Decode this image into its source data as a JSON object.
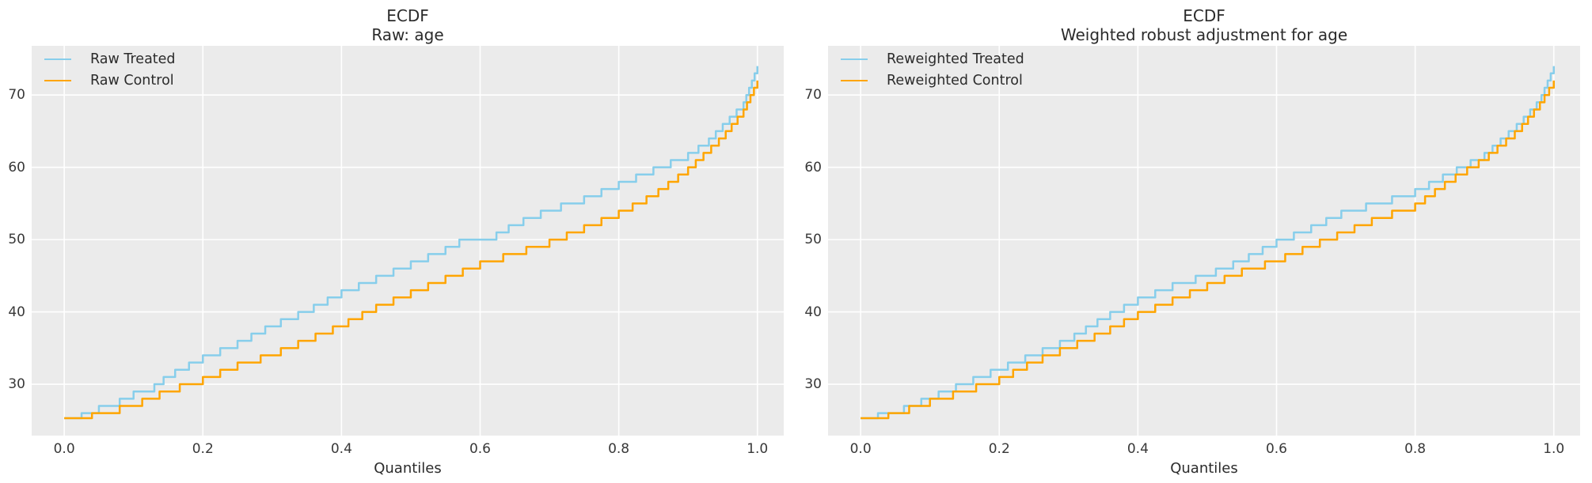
{
  "figure": {
    "background": "#ffffff",
    "axes_background": "#ebebeb",
    "grid_color": "#ffffff",
    "text_color": "#2b2b2b"
  },
  "chart_data": [
    {
      "type": "line",
      "subtype": "ecdf-quantile-step",
      "title": "ECDF",
      "subtitle": "Raw: age",
      "xlabel": "Quantiles",
      "ylabel": "",
      "grid": true,
      "legend_position": "upper-left",
      "xlim": [
        -0.047,
        1.038
      ],
      "ylim": [
        22.9,
        76.8
      ],
      "xtick_labels": [
        "0.0",
        "0.2",
        "0.4",
        "0.6",
        "0.8",
        "1.0"
      ],
      "xtick_values": [
        0.0,
        0.2,
        0.4,
        0.6,
        0.8,
        1.0
      ],
      "ytick_values": [
        30,
        40,
        50,
        60,
        70
      ],
      "series": [
        {
          "name": "Raw Treated",
          "color": "#87CEEB",
          "points": [
            [
              0,
              25.3
            ],
            [
              0.025,
              26
            ],
            [
              0.05,
              27
            ],
            [
              0.08,
              28
            ],
            [
              0.1,
              29
            ],
            [
              0.13,
              30
            ],
            [
              0.15,
              31.5
            ],
            [
              0.2,
              34
            ],
            [
              0.25,
              36
            ],
            [
              0.3,
              38.5
            ],
            [
              0.35,
              40.5
            ],
            [
              0.4,
              43
            ],
            [
              0.45,
              45
            ],
            [
              0.5,
              47
            ],
            [
              0.55,
              49
            ],
            [
              0.57,
              50
            ],
            [
              0.62,
              50.8
            ],
            [
              0.65,
              52.5
            ],
            [
              0.7,
              54.5
            ],
            [
              0.75,
              56
            ],
            [
              0.8,
              58
            ],
            [
              0.85,
              60
            ],
            [
              0.9,
              62
            ],
            [
              0.93,
              64
            ],
            [
              0.95,
              66
            ],
            [
              0.98,
              69
            ],
            [
              1.0,
              74
            ]
          ]
        },
        {
          "name": "Raw Control",
          "color": "#FFA500",
          "points": [
            [
              0,
              25.3
            ],
            [
              0.04,
              26
            ],
            [
              0.08,
              27
            ],
            [
              0.1,
              27.5
            ],
            [
              0.15,
              29.5
            ],
            [
              0.2,
              31
            ],
            [
              0.25,
              33
            ],
            [
              0.3,
              34.5
            ],
            [
              0.35,
              36.5
            ],
            [
              0.4,
              38.5
            ],
            [
              0.45,
              41
            ],
            [
              0.5,
              43
            ],
            [
              0.55,
              45
            ],
            [
              0.6,
              47
            ],
            [
              0.65,
              48.5
            ],
            [
              0.7,
              50
            ],
            [
              0.75,
              52
            ],
            [
              0.8,
              54
            ],
            [
              0.85,
              56.5
            ],
            [
              0.9,
              60
            ],
            [
              0.95,
              64.5
            ],
            [
              0.98,
              68
            ],
            [
              1.0,
              72
            ]
          ]
        }
      ]
    },
    {
      "type": "line",
      "subtype": "ecdf-quantile-step",
      "title": "ECDF",
      "subtitle": "Weighted robust adjustment for age",
      "xlabel": "Quantiles",
      "ylabel": "",
      "grid": true,
      "legend_position": "upper-left",
      "xlim": [
        -0.047,
        1.038
      ],
      "ylim": [
        22.9,
        76.8
      ],
      "xtick_labels": [
        "0.0",
        "0.2",
        "0.4",
        "0.6",
        "0.8",
        "1.0"
      ],
      "xtick_values": [
        0.0,
        0.2,
        0.4,
        0.6,
        0.8,
        1.0
      ],
      "ytick_values": [
        30,
        40,
        50,
        60,
        70
      ],
      "series": [
        {
          "name": "Reweighted Treated",
          "color": "#87CEEB",
          "points": [
            [
              0,
              25.3
            ],
            [
              0.025,
              26
            ],
            [
              0.05,
              26.5
            ],
            [
              0.1,
              28.5
            ],
            [
              0.15,
              30.5
            ],
            [
              0.2,
              32.5
            ],
            [
              0.25,
              34.5
            ],
            [
              0.3,
              36.5
            ],
            [
              0.35,
              39.5
            ],
            [
              0.4,
              42
            ],
            [
              0.45,
              44
            ],
            [
              0.5,
              45.5
            ],
            [
              0.55,
              47.5
            ],
            [
              0.6,
              50
            ],
            [
              0.65,
              52
            ],
            [
              0.7,
              54.3
            ],
            [
              0.75,
              55.5
            ],
            [
              0.8,
              57
            ],
            [
              0.85,
              59.5
            ],
            [
              0.9,
              62
            ],
            [
              0.95,
              66.3
            ],
            [
              0.98,
              69.5
            ],
            [
              1.0,
              74
            ]
          ]
        },
        {
          "name": "Reweighted Control",
          "color": "#FFA500",
          "points": [
            [
              0,
              25.3
            ],
            [
              0.04,
              26
            ],
            [
              0.1,
              28
            ],
            [
              0.15,
              29.5
            ],
            [
              0.2,
              31
            ],
            [
              0.25,
              33.5
            ],
            [
              0.3,
              35.5
            ],
            [
              0.35,
              37.5
            ],
            [
              0.4,
              40
            ],
            [
              0.45,
              42
            ],
            [
              0.5,
              44
            ],
            [
              0.55,
              46
            ],
            [
              0.6,
              47.5
            ],
            [
              0.65,
              49.5
            ],
            [
              0.7,
              51.5
            ],
            [
              0.75,
              53.5
            ],
            [
              0.8,
              55
            ],
            [
              0.85,
              58.5
            ],
            [
              0.9,
              61.5
            ],
            [
              0.95,
              65.5
            ],
            [
              0.98,
              69
            ],
            [
              1.0,
              72
            ]
          ]
        }
      ]
    }
  ]
}
